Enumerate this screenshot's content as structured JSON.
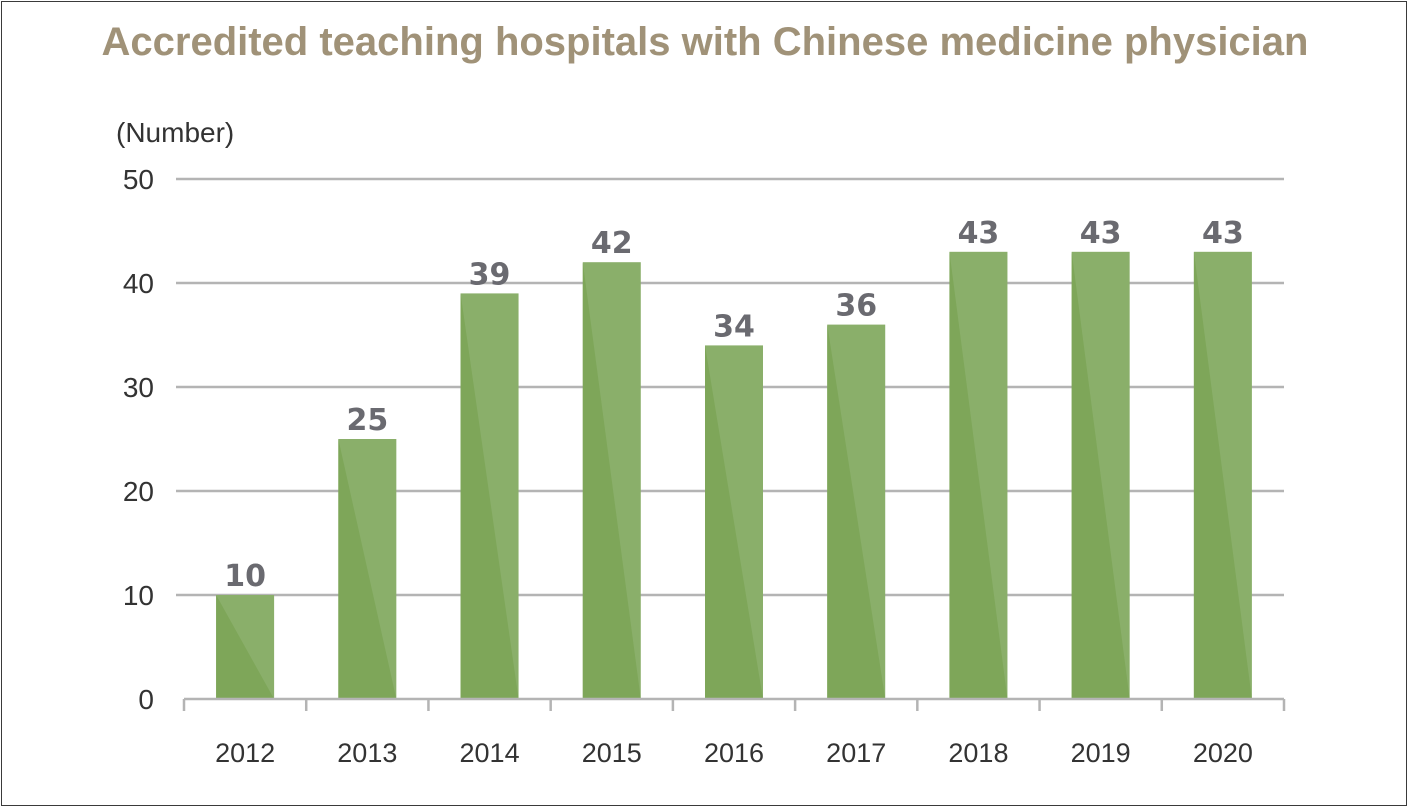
{
  "chart_data": {
    "type": "bar",
    "title": "Accredited teaching hospitals with Chinese medicine physician",
    "ylabel": "(Number)",
    "xlabel": "",
    "categories": [
      "2012",
      "2013",
      "2014",
      "2015",
      "2016",
      "2017",
      "2018",
      "2019",
      "2020"
    ],
    "values": [
      10,
      25,
      39,
      42,
      34,
      36,
      43,
      43,
      43
    ],
    "data_labels": [
      "10",
      "25",
      "39",
      "42",
      "34",
      "36",
      "43",
      "43",
      "43"
    ],
    "ylim": [
      0,
      50
    ],
    "yticks": [
      0,
      10,
      20,
      30,
      40,
      50
    ],
    "grid": true,
    "legend": "none",
    "colors": {
      "bar": "#8aaf6a",
      "bar_shade": "#7ba456",
      "grid": "#b4b4b4",
      "title": "#a09278",
      "data_label": "#6a6a70"
    }
  }
}
